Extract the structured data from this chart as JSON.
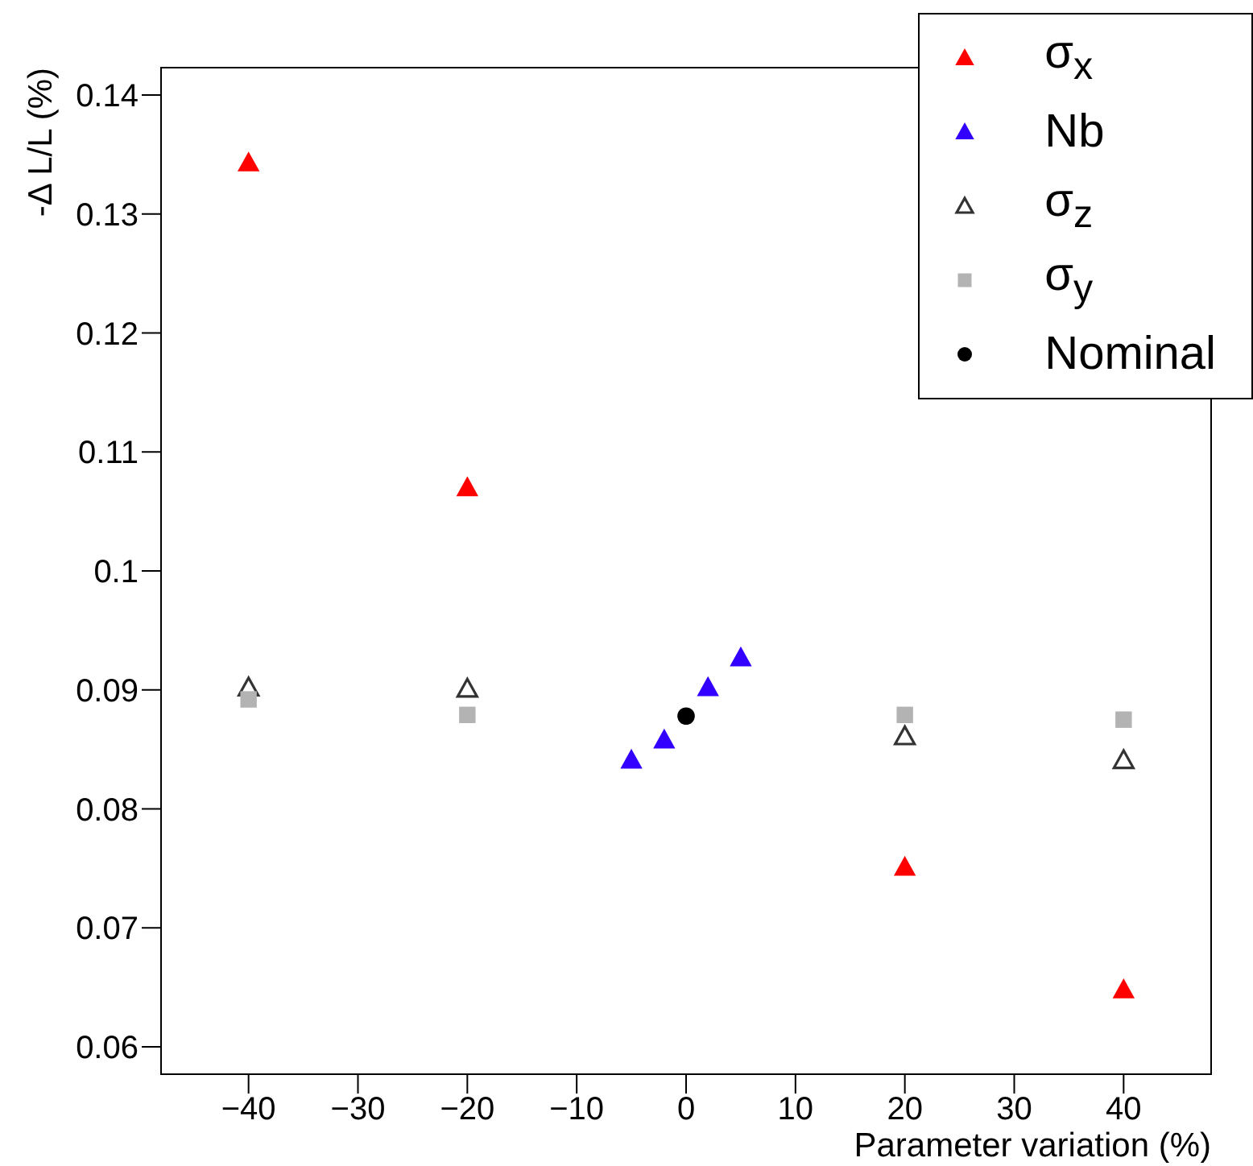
{
  "chart_data": {
    "type": "scatter",
    "xlabel": "Parameter variation (%)",
    "ylabel": "-Δ L/L (%)",
    "xlim": [
      -48,
      48
    ],
    "xticks": [
      -40,
      -30,
      -20,
      -10,
      0,
      10,
      20,
      30,
      40
    ],
    "ylim": [
      0.0577,
      0.1423
    ],
    "yticks": [
      0.06,
      0.07,
      0.08,
      0.09,
      0.1,
      0.11,
      0.12,
      0.13,
      0.14
    ],
    "legend": "top right",
    "series": [
      {
        "name": "σ$_{x}$",
        "color": "#ff0000",
        "marker": "triangle",
        "x": [
          -40,
          -20,
          20,
          40
        ],
        "values": [
          0.1343,
          0.107,
          0.0751,
          0.0648
        ]
      },
      {
        "name": "Nb",
        "color": "#3300ff",
        "marker": "triangle",
        "x": [
          -5,
          -2,
          2,
          5
        ],
        "values": [
          0.0841,
          0.0858,
          0.0902,
          0.0927
        ]
      },
      {
        "name": "σ$_{z}$",
        "color": "#333333",
        "marker": "triangle-open",
        "x": [
          -40,
          -20,
          20,
          40
        ],
        "values": [
          0.0902,
          0.0901,
          0.0861,
          0.0841
        ]
      },
      {
        "name": "σ$_{y}$",
        "color": "#b3b3b3",
        "marker": "square",
        "x": [
          -40,
          -20,
          20,
          40
        ],
        "values": [
          0.0892,
          0.0879,
          0.0879,
          0.0875
        ]
      },
      {
        "name": "Nominal",
        "color": "#000000",
        "marker": "circle",
        "x": [
          0
        ],
        "values": [
          0.0878
        ]
      }
    ]
  }
}
